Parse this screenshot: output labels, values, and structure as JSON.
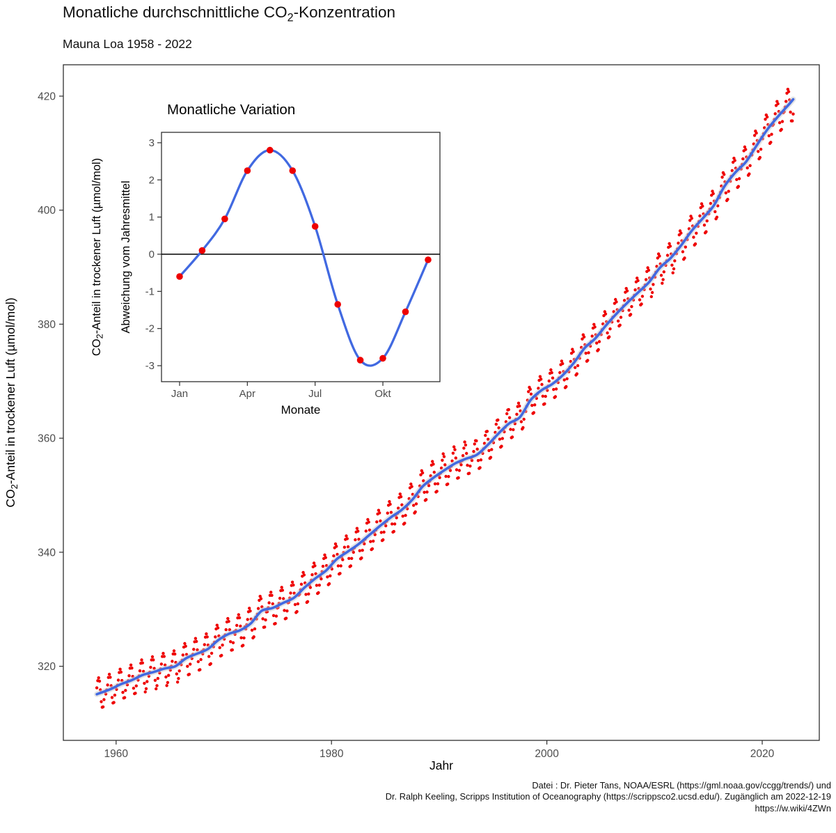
{
  "header": {
    "title": {
      "pre": "Monatliche durchschnittliche CO",
      "sub": "2",
      "post": "-Konzentration"
    },
    "subtitle": "Mauna Loa 1958 - 2022"
  },
  "main_chart": {
    "xlabel": "Jahr",
    "ylabel": {
      "pre": "CO",
      "sub": "2",
      "post": "-Anteil in trockener Luft (µmol/mol)"
    }
  },
  "inset_chart": {
    "title": "Monatliche Variation",
    "xlabel": "Monate",
    "ylabel_line1": {
      "pre": "CO",
      "sub": "2",
      "post": "-Anteil in trockener Luft (µmol/mol)"
    },
    "ylabel_line2": "Abweichung vom Jahresmittel"
  },
  "caption": {
    "line1": "Datei : Dr. Pieter Tans, NOAA/ESRL (https://gml.noaa.gov/ccgg/trends/) und",
    "line2": "Dr. Ralph Keeling, Scripps Institution of Oceanography (https://scrippsco2.ucsd.edu/). Zugänglich am 2022-12-19",
    "line3": "https://w.wiki/4ZWn"
  },
  "chart_data": [
    {
      "id": "co2-monthly-trend",
      "type": "scatter",
      "title": "Monatliche durchschnittliche CO₂-Konzentration",
      "subtitle": "Mauna Loa 1958 - 2022",
      "xlabel": "Jahr",
      "ylabel": "CO₂-Anteil in trockener Luft (µmol/mol)",
      "xlim": [
        1955.1,
        2025.3
      ],
      "ylim": [
        307.0,
        425.5
      ],
      "x_ticks": [
        1960,
        1980,
        2000,
        2020
      ],
      "y_ticks": [
        320,
        340,
        360,
        380,
        400,
        420
      ],
      "grid": "none",
      "legend": "none",
      "point_color": "#ee0000",
      "trend_color": "#4169e1",
      "note": "monthly red points = interpolated annual trend + seasonal deviation; blue curve = smoothed annual trend",
      "first_month": 3,
      "last_month": 11,
      "years": [
        1958,
        1959,
        1960,
        1961,
        1962,
        1963,
        1964,
        1965,
        1966,
        1967,
        1968,
        1969,
        1970,
        1971,
        1972,
        1973,
        1974,
        1975,
        1976,
        1977,
        1978,
        1979,
        1980,
        1981,
        1982,
        1983,
        1984,
        1985,
        1986,
        1987,
        1988,
        1989,
        1990,
        1991,
        1992,
        1993,
        1994,
        1995,
        1996,
        1997,
        1998,
        1999,
        2000,
        2001,
        2002,
        2003,
        2004,
        2005,
        2006,
        2007,
        2008,
        2009,
        2010,
        2011,
        2012,
        2013,
        2014,
        2015,
        2016,
        2017,
        2018,
        2019,
        2020,
        2021,
        2022
      ],
      "annual_mean_trend": [
        315.3,
        316.0,
        316.9,
        317.6,
        318.5,
        319.0,
        319.6,
        320.0,
        321.4,
        322.2,
        323.0,
        324.6,
        325.7,
        326.3,
        327.5,
        329.7,
        330.2,
        331.1,
        332.0,
        333.8,
        335.4,
        336.8,
        338.8,
        340.1,
        341.4,
        343.0,
        344.6,
        346.1,
        347.4,
        349.2,
        351.6,
        353.1,
        354.4,
        355.6,
        356.4,
        357.1,
        358.8,
        360.8,
        362.6,
        363.7,
        366.7,
        368.4,
        369.5,
        371.1,
        373.2,
        375.8,
        377.5,
        379.8,
        381.9,
        383.8,
        385.6,
        387.4,
        389.9,
        391.6,
        393.9,
        396.5,
        398.6,
        400.8,
        404.2,
        406.6,
        408.5,
        411.4,
        414.2,
        416.5,
        418.6
      ],
      "seasonal_deviation": [
        -0.6,
        0.1,
        0.95,
        2.25,
        2.8,
        2.25,
        0.75,
        -1.35,
        -2.85,
        -2.8,
        -1.55,
        -0.15
      ]
    },
    {
      "id": "seasonal-cycle-inset",
      "type": "line",
      "title": "Monatliche Variation",
      "xlabel": "Monate",
      "ylabel": "CO₂-Anteil in trockener Luft (µmol/mol), Abweichung vom Jahresmittel",
      "x": [
        1,
        2,
        3,
        4,
        5,
        6,
        7,
        8,
        9,
        10,
        11,
        12
      ],
      "values": [
        -0.6,
        0.1,
        0.95,
        2.25,
        2.8,
        2.25,
        0.75,
        -1.35,
        -2.85,
        -2.8,
        -1.55,
        -0.15
      ],
      "x_tick_positions": [
        1,
        4,
        7,
        10
      ],
      "x_tick_labels": [
        "Jan",
        "Apr",
        "Jul",
        "Okt"
      ],
      "y_ticks": [
        -3,
        -2,
        -1,
        0,
        1,
        2,
        3
      ],
      "ylim": [
        -3.43,
        3.28
      ],
      "zero_line": true,
      "grid": "none",
      "legend": "none",
      "point_color": "#ee0000",
      "line_color": "#4169e1"
    }
  ]
}
